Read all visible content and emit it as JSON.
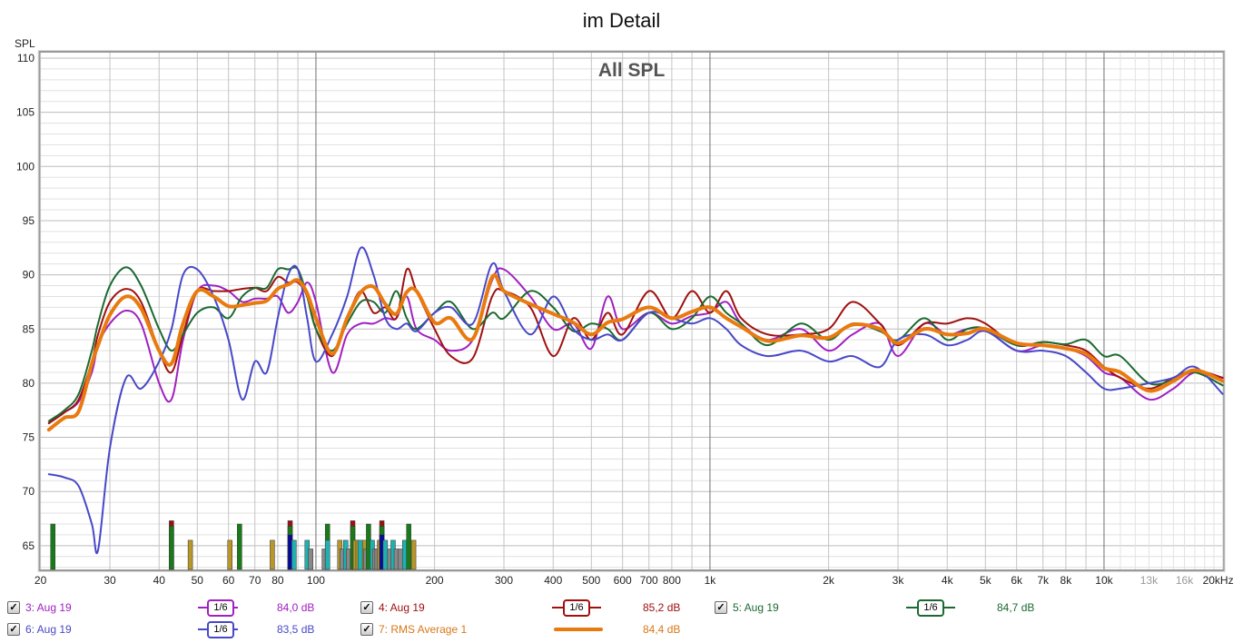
{
  "title": "im Detail",
  "chart_data": {
    "type": "line",
    "title": "im Detail",
    "subtitle": "All SPL",
    "ylabel": "SPL",
    "xlabel": "Hz",
    "xscale": "log",
    "xlim": [
      20,
      20000
    ],
    "ylim": [
      62.8,
      110.5
    ],
    "grid": true,
    "yticks": [
      65,
      70,
      75,
      80,
      85,
      90,
      95,
      100,
      105,
      110
    ],
    "xticks": [
      {
        "f": 20,
        "label": "20"
      },
      {
        "f": 30,
        "label": "30"
      },
      {
        "f": 40,
        "label": "40"
      },
      {
        "f": 50,
        "label": "50"
      },
      {
        "f": 60,
        "label": "60"
      },
      {
        "f": 70,
        "label": "70"
      },
      {
        "f": 80,
        "label": "80"
      },
      {
        "f": 100,
        "label": "100"
      },
      {
        "f": 200,
        "label": "200"
      },
      {
        "f": 300,
        "label": "300"
      },
      {
        "f": 400,
        "label": "400"
      },
      {
        "f": 500,
        "label": "500"
      },
      {
        "f": 600,
        "label": "600"
      },
      {
        "f": 700,
        "label": "700"
      },
      {
        "f": 800,
        "label": "800"
      },
      {
        "f": 1000,
        "label": "1k"
      },
      {
        "f": 2000,
        "label": "2k"
      },
      {
        "f": 3000,
        "label": "3k"
      },
      {
        "f": 4000,
        "label": "4k"
      },
      {
        "f": 5000,
        "label": "5k"
      },
      {
        "f": 6000,
        "label": "6k"
      },
      {
        "f": 7000,
        "label": "7k"
      },
      {
        "f": 8000,
        "label": "8k"
      },
      {
        "f": 10000,
        "label": "10k"
      },
      {
        "f": 13000,
        "label": "13k",
        "dim": true
      },
      {
        "f": 16000,
        "label": "16k",
        "dim": true
      },
      {
        "f": 20000,
        "label": "20kHz"
      }
    ],
    "x": [
      21,
      23,
      25,
      27,
      28,
      30,
      33,
      36,
      40,
      43,
      46,
      50,
      55,
      60,
      65,
      70,
      75,
      80,
      85,
      90,
      95,
      100,
      110,
      120,
      130,
      140,
      150,
      160,
      170,
      180,
      200,
      220,
      250,
      280,
      300,
      350,
      400,
      450,
      500,
      550,
      600,
      700,
      800,
      900,
      1000,
      1100,
      1200,
      1400,
      1700,
      2000,
      2300,
      2700,
      3000,
      3500,
      4000,
      4500,
      5000,
      6000,
      7000,
      8000,
      9000,
      10000,
      11000,
      13000,
      15000,
      17000,
      20000
    ],
    "series": [
      {
        "name": "3: Aug 19",
        "color": "#a020c0",
        "width": 2,
        "smoothing": "1/6",
        "level": "84,0 dB",
        "values": [
          76.3,
          77.3,
          78.3,
          81,
          83.5,
          85.5,
          86.7,
          85.5,
          80,
          78.5,
          84,
          88.5,
          89,
          88.5,
          87.5,
          87.8,
          87.8,
          88,
          86.5,
          87.5,
          89.3,
          87.5,
          81,
          84.5,
          85.5,
          85.5,
          86,
          86,
          88,
          85,
          84,
          83,
          84,
          89.5,
          90.5,
          88,
          85,
          85.5,
          83.2,
          88,
          85,
          86.5,
          85.5,
          86.2,
          86.5,
          87.5,
          85.5,
          84,
          85,
          83,
          84.5,
          85.5,
          82.5,
          85.5,
          84.5,
          85,
          85,
          83,
          83.5,
          83.2,
          82.5,
          81,
          80.5,
          78.5,
          79.5,
          81,
          80.5
        ]
      },
      {
        "name": "4: Aug 19",
        "color": "#a01010",
        "width": 2,
        "smoothing": "1/6",
        "level": "85,2 dB",
        "values": [
          76.3,
          77.3,
          78.5,
          82,
          84.5,
          87.5,
          88.7,
          87.5,
          83,
          81,
          84.5,
          88.5,
          88.5,
          88.5,
          88.7,
          88.8,
          88.5,
          89.8,
          89.3,
          89.3,
          88,
          85,
          82.5,
          86,
          88.5,
          86.5,
          87,
          86,
          90.5,
          88.5,
          85,
          82.5,
          82.3,
          88,
          88.5,
          87,
          82.5,
          86,
          84,
          86.5,
          84.5,
          88.5,
          86,
          88.5,
          86.5,
          88.5,
          86,
          84.5,
          84.5,
          85,
          87.5,
          85.5,
          83.5,
          85.5,
          85.5,
          86,
          85.5,
          83.5,
          83.8,
          83.5,
          83,
          81.5,
          80.5,
          79.5,
          80.5,
          81.2,
          80.5
        ]
      },
      {
        "name": "5: Aug 19",
        "color": "#1a6a30",
        "width": 2,
        "smoothing": "1/6",
        "level": "84,7 dB",
        "values": [
          76.5,
          77.5,
          79,
          83,
          85.5,
          89,
          90.7,
          89,
          85,
          83,
          84.5,
          86.5,
          87,
          86,
          88,
          88.8,
          88.8,
          90.5,
          90.5,
          90.5,
          88,
          85,
          83,
          85.5,
          87.5,
          87.5,
          86.5,
          88.5,
          86,
          85,
          86.5,
          87.5,
          85,
          86.5,
          86,
          88.5,
          87,
          84.8,
          85.5,
          85,
          84,
          86.5,
          85,
          86,
          88,
          86.5,
          85.5,
          83.5,
          85.5,
          84,
          85.5,
          84.8,
          84,
          86,
          84,
          85,
          85,
          83.5,
          83.8,
          83.6,
          84,
          82.5,
          82.5,
          80,
          80.3,
          81,
          79.8
        ]
      },
      {
        "name": "6: Aug 19",
        "color": "#4848c8",
        "width": 2,
        "smoothing": "1/6",
        "level": "83,5 dB",
        "values": [
          71.6,
          71.3,
          70.5,
          67,
          64.6,
          74,
          80.5,
          79.5,
          82,
          85,
          90,
          90.5,
          88,
          84,
          78.5,
          82,
          81,
          86,
          90,
          90.5,
          86,
          82,
          84.5,
          88,
          92.5,
          90,
          86,
          85,
          85.5,
          84.8,
          86.5,
          87,
          85.5,
          91,
          88.5,
          84.5,
          88,
          85,
          84,
          84.5,
          84,
          86.5,
          86,
          85.5,
          86,
          85,
          83.5,
          82.5,
          83,
          82,
          82.5,
          81.5,
          84,
          84.5,
          83.5,
          84,
          84.8,
          83,
          83,
          82.5,
          81,
          79.5,
          79.5,
          80,
          80.5,
          81.5,
          79
        ]
      },
      {
        "name": "7: RMS Average 1",
        "color": "#e87a10",
        "text_color": "#d87818",
        "width": 4,
        "smoothing": "",
        "level": "84,4 dB",
        "values": [
          75.7,
          76.8,
          77.4,
          81.8,
          83.5,
          86.3,
          88,
          86.9,
          83,
          81.8,
          85.5,
          88.5,
          88,
          87.1,
          87.2,
          87.4,
          87.6,
          88.7,
          89.1,
          89.5,
          88.3,
          86,
          82.7,
          86,
          88.4,
          88.9,
          87.3,
          86.4,
          88.4,
          88.5,
          85.6,
          86,
          84.1,
          89.8,
          88.5,
          87.3,
          86.4,
          85.6,
          84.5,
          85.6,
          85.9,
          87,
          86,
          86.6,
          87,
          86,
          85.2,
          83.9,
          84.4,
          84.2,
          85.4,
          85,
          83.7,
          85,
          84.5,
          84.6,
          85,
          83.7,
          83.5,
          83.2,
          82.7,
          81.4,
          81,
          79.3,
          80.2,
          81.2,
          80.2
        ]
      }
    ],
    "markers": [
      [
        21.5,
        67,
        "#1a7a1a"
      ],
      [
        43,
        67.3,
        "#a01010"
      ],
      [
        43,
        66.8,
        "#1a7a1a"
      ],
      [
        48,
        65.5,
        "#b8962a"
      ],
      [
        60.5,
        65.5,
        "#b8962a"
      ],
      [
        64,
        67,
        "#1a7a1a"
      ],
      [
        77.5,
        65.5,
        "#b8962a"
      ],
      [
        86,
        67.3,
        "#a01010"
      ],
      [
        86,
        66.8,
        "#1a7a1a"
      ],
      [
        86,
        66,
        "#0a0a9a"
      ],
      [
        88,
        65.5,
        "#20b0b0"
      ],
      [
        95,
        65.5,
        "#20b0b0"
      ],
      [
        97,
        64.7,
        "#888888"
      ],
      [
        105,
        64.7,
        "#888888"
      ],
      [
        107,
        67,
        "#1a7a1a"
      ],
      [
        107,
        65.5,
        "#20b0b0"
      ],
      [
        115,
        65.5,
        "#b8962a"
      ],
      [
        116.5,
        64.7,
        "#888888"
      ],
      [
        119,
        65.5,
        "#20b0b0"
      ],
      [
        121,
        64.7,
        "#888888"
      ],
      [
        124,
        67.3,
        "#a01010"
      ],
      [
        124,
        66.8,
        "#1a7a1a"
      ],
      [
        126,
        65.5,
        "#b8962a"
      ],
      [
        128,
        65.5,
        "#b8962a"
      ],
      [
        129.5,
        65.5,
        "#20b0b0"
      ],
      [
        133,
        65.5,
        "#b8962a"
      ],
      [
        134,
        64.7,
        "#888888"
      ],
      [
        136,
        67,
        "#1a7a1a"
      ],
      [
        139,
        65.5,
        "#20b0b0"
      ],
      [
        141,
        64.7,
        "#888888"
      ],
      [
        143,
        64.7,
        "#888888"
      ],
      [
        145,
        65.5,
        "#b8962a"
      ],
      [
        147,
        67.3,
        "#a01010"
      ],
      [
        147,
        66.8,
        "#1a7a1a"
      ],
      [
        147,
        66,
        "#0a0a9a"
      ],
      [
        150,
        65.5,
        "#20b0b0"
      ],
      [
        154,
        64.7,
        "#888888"
      ],
      [
        157,
        65.5,
        "#20b0b0"
      ],
      [
        160,
        64.7,
        "#888888"
      ],
      [
        164,
        64.7,
        "#888888"
      ],
      [
        168,
        65.5,
        "#20b0b0"
      ],
      [
        172,
        67,
        "#1a7a1a"
      ],
      [
        177,
        65.5,
        "#b8962a"
      ]
    ]
  },
  "legend": [
    {
      "label": "3: Aug 19",
      "smoothing": "1/6",
      "level": "84,0 dB",
      "checked": true
    },
    {
      "label": "4: Aug 19",
      "smoothing": "1/6",
      "level": "85,2 dB",
      "checked": true
    },
    {
      "label": "5: Aug 19",
      "smoothing": "1/6",
      "level": "84,7 dB",
      "checked": true
    },
    {
      "label": "6: Aug 19",
      "smoothing": "1/6",
      "level": "83,5 dB",
      "checked": true
    },
    {
      "label": "7: RMS Average 1",
      "smoothing": "",
      "level": "84,4 dB",
      "checked": true
    }
  ]
}
